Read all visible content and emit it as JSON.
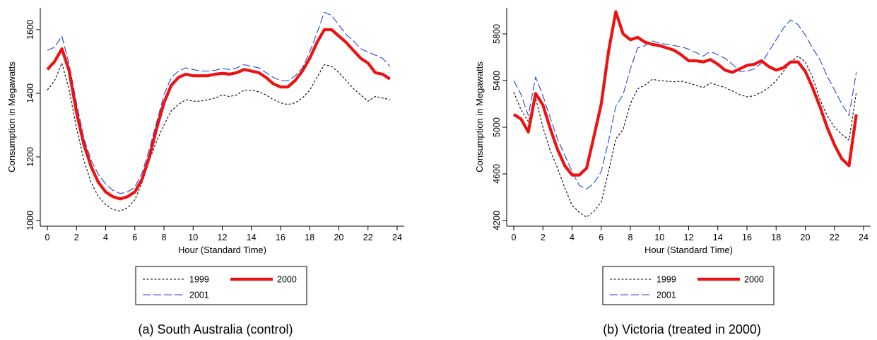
{
  "chart_data": [
    {
      "type": "line",
      "caption": "(a) South Australia (control)",
      "xlabel": "Hour (Standard Time)",
      "ylabel": "Consumption in Megawatts",
      "xlim": [
        0,
        24
      ],
      "ylim": [
        1000,
        1660
      ],
      "xticks": [
        0,
        2,
        4,
        6,
        8,
        10,
        12,
        14,
        16,
        18,
        20,
        22,
        24
      ],
      "xtick_labels": [
        "0",
        "2",
        "4",
        "6",
        "8",
        "10",
        "12",
        "14",
        "16",
        "18",
        "20",
        "22",
        "24"
      ],
      "yticks": [
        1000,
        1200,
        1400,
        1600
      ],
      "ytick_labels": [
        "1000",
        "1200",
        "1400",
        "1600"
      ],
      "grid": false,
      "legend_position": "bottom",
      "x": [
        0,
        0.5,
        1,
        1.5,
        2,
        2.5,
        3,
        3.5,
        4,
        4.5,
        5,
        5.5,
        6,
        6.5,
        7,
        7.5,
        8,
        8.5,
        9,
        9.5,
        10,
        10.5,
        11,
        11.5,
        12,
        12.5,
        13,
        13.5,
        14,
        14.5,
        15,
        15.5,
        16,
        16.5,
        17,
        17.5,
        18,
        18.5,
        19,
        19.5,
        20,
        20.5,
        21,
        21.5,
        22,
        22.5,
        23,
        23.5
      ],
      "series": [
        {
          "name": "1999",
          "color": "#000000",
          "style": "short-dash",
          "values": [
            1410,
            1440,
            1495,
            1410,
            1290,
            1190,
            1120,
            1075,
            1050,
            1035,
            1030,
            1040,
            1065,
            1120,
            1190,
            1250,
            1300,
            1345,
            1365,
            1380,
            1375,
            1375,
            1380,
            1385,
            1395,
            1390,
            1395,
            1410,
            1410,
            1405,
            1395,
            1380,
            1370,
            1365,
            1370,
            1385,
            1410,
            1450,
            1490,
            1485,
            1465,
            1440,
            1415,
            1395,
            1375,
            1390,
            1385,
            1380
          ]
        },
        {
          "name": "2000",
          "color": "#ee1111",
          "style": "solid-thick",
          "values": [
            1475,
            1500,
            1540,
            1470,
            1340,
            1240,
            1170,
            1120,
            1090,
            1075,
            1068,
            1075,
            1090,
            1130,
            1200,
            1290,
            1370,
            1425,
            1450,
            1460,
            1455,
            1455,
            1455,
            1460,
            1463,
            1460,
            1465,
            1475,
            1470,
            1465,
            1450,
            1430,
            1420,
            1420,
            1440,
            1470,
            1510,
            1560,
            1600,
            1600,
            1580,
            1560,
            1535,
            1510,
            1495,
            1465,
            1460,
            1445
          ]
        },
        {
          "name": "2001",
          "color": "#2244dd",
          "style": "long-dash",
          "values": [
            1535,
            1545,
            1580,
            1490,
            1370,
            1260,
            1190,
            1145,
            1115,
            1095,
            1085,
            1090,
            1105,
            1150,
            1225,
            1310,
            1395,
            1450,
            1470,
            1480,
            1475,
            1470,
            1470,
            1472,
            1478,
            1475,
            1480,
            1490,
            1485,
            1480,
            1465,
            1450,
            1440,
            1440,
            1455,
            1480,
            1530,
            1590,
            1655,
            1645,
            1615,
            1585,
            1565,
            1540,
            1530,
            1520,
            1510,
            1485
          ]
        }
      ]
    },
    {
      "type": "line",
      "caption": "(b) Victoria (treated in 2000)",
      "xlabel": "Hour (Standard Time)",
      "ylabel": "Consumption in Megawatts",
      "xlim": [
        0,
        24
      ],
      "ylim": [
        4200,
        6000
      ],
      "xticks": [
        0,
        2,
        4,
        6,
        8,
        10,
        12,
        14,
        16,
        18,
        20,
        22,
        24
      ],
      "xtick_labels": [
        "0",
        "2",
        "4",
        "6",
        "8",
        "10",
        "12",
        "14",
        "16",
        "18",
        "20",
        "22",
        "24"
      ],
      "yticks": [
        4200,
        4600,
        5000,
        5400,
        5800
      ],
      "ytick_labels": [
        "4200",
        "4600",
        "5000",
        "5400",
        "5800"
      ],
      "grid": false,
      "legend_position": "bottom",
      "x": [
        0,
        0.5,
        1,
        1.5,
        2,
        2.5,
        3,
        3.5,
        4,
        4.5,
        5,
        5.5,
        6,
        6.5,
        7,
        7.5,
        8,
        8.5,
        9,
        9.5,
        10,
        10.5,
        11,
        11.5,
        12,
        12.5,
        13,
        13.5,
        14,
        14.5,
        15,
        15.5,
        16,
        16.5,
        17,
        17.5,
        18,
        18.5,
        19,
        19.5,
        20,
        20.5,
        21,
        21.5,
        22,
        22.5,
        23,
        23.5
      ],
      "series": [
        {
          "name": "1999",
          "color": "#000000",
          "style": "short-dash",
          "values": [
            5300,
            5150,
            5050,
            5250,
            5000,
            4800,
            4650,
            4480,
            4330,
            4270,
            4230,
            4280,
            4360,
            4620,
            4900,
            4980,
            5200,
            5330,
            5360,
            5410,
            5400,
            5395,
            5390,
            5395,
            5380,
            5360,
            5340,
            5380,
            5360,
            5340,
            5310,
            5280,
            5260,
            5270,
            5300,
            5340,
            5400,
            5480,
            5560,
            5610,
            5560,
            5430,
            5240,
            5100,
            5000,
            4940,
            4890,
            5300
          ]
        },
        {
          "name": "2000",
          "color": "#ee1111",
          "style": "solid-thick",
          "values": [
            5110,
            5070,
            4960,
            5290,
            5190,
            4990,
            4810,
            4670,
            4590,
            4590,
            4650,
            4920,
            5200,
            5650,
            5990,
            5800,
            5750,
            5770,
            5730,
            5710,
            5700,
            5680,
            5660,
            5620,
            5570,
            5570,
            5560,
            5580,
            5540,
            5490,
            5470,
            5500,
            5530,
            5540,
            5570,
            5520,
            5490,
            5510,
            5560,
            5560,
            5480,
            5340,
            5180,
            5000,
            4850,
            4730,
            4670,
            5110
          ]
        },
        {
          "name": "2001",
          "color": "#2244dd",
          "style": "long-dash",
          "values": [
            5400,
            5280,
            5100,
            5430,
            5270,
            5080,
            4900,
            4760,
            4620,
            4500,
            4470,
            4520,
            4620,
            4880,
            5180,
            5280,
            5500,
            5680,
            5700,
            5740,
            5720,
            5710,
            5700,
            5690,
            5670,
            5640,
            5610,
            5650,
            5620,
            5590,
            5540,
            5480,
            5480,
            5500,
            5550,
            5650,
            5750,
            5850,
            5920,
            5880,
            5790,
            5680,
            5580,
            5440,
            5320,
            5200,
            5100,
            5470
          ]
        }
      ]
    }
  ]
}
